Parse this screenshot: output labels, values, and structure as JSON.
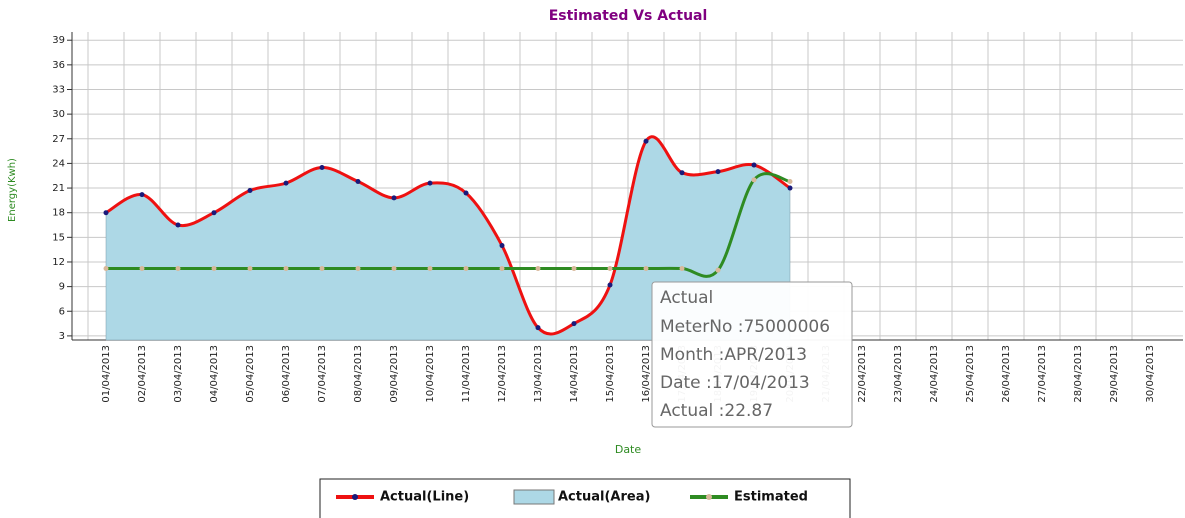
{
  "chart_data": {
    "type": "line",
    "title": "Estimated Vs Actual",
    "x_label": "Date",
    "y_label": "Energy(Kwh)",
    "categories": [
      "01/04/2013",
      "02/04/2013",
      "03/04/2013",
      "04/04/2013",
      "05/04/2013",
      "06/04/2013",
      "07/04/2013",
      "08/04/2013",
      "09/04/2013",
      "10/04/2013",
      "11/04/2013",
      "12/04/2013",
      "13/04/2013",
      "14/04/2013",
      "15/04/2013",
      "16/04/2013",
      "17/04/2013",
      "18/04/2013",
      "19/04/2013",
      "20/04/2013",
      "21/04/2013",
      "22/04/2013",
      "23/04/2013",
      "24/04/2013",
      "25/04/2013",
      "26/04/2013",
      "27/04/2013",
      "28/04/2013",
      "29/04/2013",
      "30/04/2013"
    ],
    "series": [
      {
        "name": "Actual(Line)",
        "color": "#ee1111",
        "kind": "line",
        "values": [
          18,
          20.2,
          16.5,
          18,
          20.7,
          21.6,
          23.5,
          21.8,
          19.8,
          21.6,
          20.4,
          14,
          4,
          4.5,
          9.2,
          26.7,
          22.87,
          23,
          23.8,
          21,
          null,
          null,
          null,
          null,
          null,
          null,
          null,
          null,
          null,
          null
        ]
      },
      {
        "name": "Actual(Area)",
        "color": "#add8e6",
        "kind": "area",
        "values": [
          18,
          20.2,
          16.5,
          18,
          20.7,
          21.6,
          23.5,
          21.8,
          19.8,
          21.6,
          20.4,
          14,
          4,
          4.5,
          9.2,
          26.7,
          22.87,
          23,
          23.8,
          21,
          null,
          null,
          null,
          null,
          null,
          null,
          null,
          null,
          null,
          null
        ]
      },
      {
        "name": "Estimated",
        "color": "#2e8b22",
        "kind": "line",
        "values": [
          11.2,
          11.2,
          11.2,
          11.2,
          11.2,
          11.2,
          11.2,
          11.2,
          11.2,
          11.2,
          11.2,
          11.2,
          11.2,
          11.2,
          11.2,
          11.2,
          11.2,
          11,
          22,
          21.8,
          null,
          null,
          null,
          null,
          null,
          null,
          null,
          null,
          null,
          null
        ]
      }
    ],
    "ylim": [
      2.5,
      40
    ],
    "yticks": [
      3,
      6,
      9,
      12,
      15,
      18,
      21,
      24,
      27,
      30,
      33,
      36,
      39
    ],
    "grid": true,
    "tooltip": {
      "title": "Actual",
      "lines": [
        "MeterNo :75000006",
        "Month :APR/2013",
        "Date :17/04/2013",
        "Actual :22.87"
      ]
    }
  }
}
